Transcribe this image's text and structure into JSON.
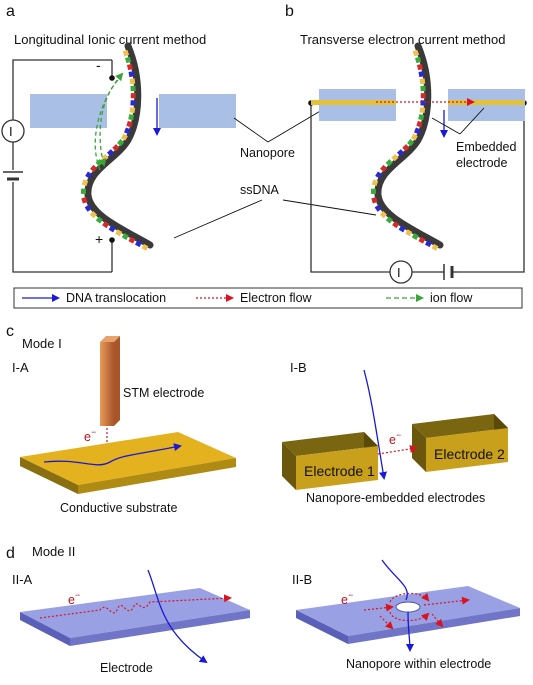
{
  "panels": {
    "a": "a",
    "b": "b",
    "c": "c",
    "d": "d"
  },
  "titles": {
    "a": "Longitudinal Ionic current method",
    "b": "Transverse electron current method",
    "c": "Mode I",
    "d": "Mode II"
  },
  "labels": {
    "nanopore": "Nanopore",
    "embedded_1": "Embedded",
    "embedded_2": "electrode",
    "ssdna": "ssDNA",
    "current_a": "I",
    "current_b": "I",
    "minus": "-",
    "plus": "+",
    "ia": "I-A",
    "ib": "I-B",
    "iia": "II-A",
    "iib": "II-B",
    "electron_1": "e",
    "electron_2": "e",
    "electron_3": "e",
    "electron_4": "e",
    "electron_sup": "−",
    "stm": "STM electrode",
    "conductive": "Conductive substrate",
    "electrode1": "Electrode 1",
    "electrode2": "Electrode 2",
    "nanopore_embedded": "Nanopore-embedded electrodes",
    "electrode": "Electrode",
    "nanopore_within": "Nanopore within electrode"
  },
  "legend": [
    {
      "label": "DNA translocation",
      "style": "solid",
      "color": "#1a1ad6"
    },
    {
      "label": "Electron flow",
      "style": "dotted",
      "color": "#d9141e"
    },
    {
      "label": "ion flow",
      "style": "dashed",
      "color": "#3aa33a"
    }
  ],
  "colors": {
    "membrane": "#a9bfe6",
    "electrode_gold": "#e3b21e",
    "electrode_side": "#7a6510",
    "plate_top": "#8f96e0",
    "plate_side": "#5b5fb4",
    "stm": "#cf7a3c",
    "dna": "#3a3a3a",
    "bases": [
      "#2a2ad0",
      "#d42a2a",
      "#3aaa3a",
      "#f0c050"
    ]
  }
}
